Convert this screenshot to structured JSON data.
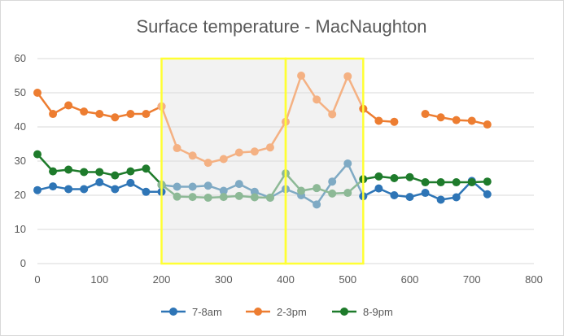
{
  "chart_data": {
    "type": "scatter",
    "title": "Surface temperature - MacNaughton",
    "xlabel": "",
    "ylabel": "",
    "xlim": [
      0,
      800
    ],
    "ylim": [
      0,
      60
    ],
    "x_ticks": [
      0,
      100,
      200,
      300,
      400,
      500,
      600,
      700,
      800
    ],
    "y_ticks": [
      0,
      10,
      20,
      30,
      40,
      50,
      60
    ],
    "grid": "horizontal",
    "legend": "bottom",
    "highlight_regions": [
      {
        "x_range": [
          200,
          400
        ],
        "y_range": [
          0,
          60
        ],
        "border_color": "#FFFF33",
        "fill_color": "#F2F2F2"
      },
      {
        "x_range": [
          400,
          525
        ],
        "y_range": [
          0,
          60
        ],
        "border_color": "#FFFF33",
        "fill_color": "#F2F2F2"
      }
    ],
    "series": [
      {
        "name": "7-8am",
        "color": "#2E75B6",
        "faded_color": "#7FAAC4",
        "segments": [
          [
            [
              0,
              21.5
            ],
            [
              25,
              22.6
            ],
            [
              50,
              21.8
            ],
            [
              75,
              21.8
            ],
            [
              100,
              23.8
            ],
            [
              125,
              21.8
            ],
            [
              150,
              23.6
            ],
            [
              175,
              21
            ],
            [
              200,
              21
            ]
          ],
          [
            [
              200,
              23
            ],
            [
              225,
              22.5
            ],
            [
              250,
              22.5
            ],
            [
              275,
              22.8
            ],
            [
              300,
              21.3
            ],
            [
              325,
              23.3
            ],
            [
              350,
              21
            ],
            [
              375,
              19.3
            ],
            [
              400,
              21.8
            ],
            [
              425,
              20
            ],
            [
              450,
              17.3
            ],
            [
              475,
              24
            ],
            [
              500,
              29.3
            ],
            [
              525,
              19.7
            ]
          ],
          [
            [
              525,
              19.7
            ],
            [
              550,
              22
            ],
            [
              575,
              20
            ],
            [
              600,
              19.5
            ],
            [
              625,
              20.7
            ],
            [
              650,
              18.7
            ],
            [
              675,
              19.4
            ],
            [
              700,
              24.2
            ],
            [
              725,
              20.3
            ]
          ]
        ]
      },
      {
        "name": "2-3pm",
        "color": "#ED7D31",
        "faded_color": "#F4B183",
        "segments": [
          [
            [
              0,
              50
            ],
            [
              25,
              43.8
            ],
            [
              50,
              46.3
            ],
            [
              75,
              44.5
            ],
            [
              100,
              43.8
            ],
            [
              125,
              42.8
            ],
            [
              150,
              43.8
            ],
            [
              175,
              43.8
            ],
            [
              200,
              46
            ]
          ],
          [
            [
              200,
              46
            ],
            [
              225,
              33.8
            ],
            [
              250,
              31.6
            ],
            [
              275,
              29.5
            ],
            [
              300,
              30.6
            ],
            [
              325,
              32.5
            ],
            [
              350,
              32.8
            ],
            [
              375,
              34
            ],
            [
              400,
              41.5
            ],
            [
              425,
              55
            ],
            [
              450,
              48
            ],
            [
              475,
              43.7
            ],
            [
              500,
              54.8
            ],
            [
              525,
              45.3
            ]
          ],
          [
            [
              525,
              45.3
            ],
            [
              550,
              41.8
            ],
            [
              575,
              41.5
            ]
          ],
          [
            [
              625,
              43.8
            ],
            [
              650,
              42.8
            ],
            [
              675,
              42
            ],
            [
              700,
              41.8
            ],
            [
              725,
              40.7
            ]
          ]
        ]
      },
      {
        "name": "8-9pm",
        "color": "#1E7B2B",
        "faded_color": "#8DB996",
        "segments": [
          [
            [
              0,
              32
            ],
            [
              25,
              27
            ],
            [
              50,
              27.5
            ],
            [
              75,
              26.8
            ],
            [
              100,
              26.8
            ],
            [
              125,
              25.8
            ],
            [
              150,
              27
            ],
            [
              175,
              27.8
            ],
            [
              200,
              23.1
            ]
          ],
          [
            [
              200,
              23.1
            ],
            [
              225,
              19.6
            ],
            [
              250,
              19.5
            ],
            [
              275,
              19.3
            ],
            [
              300,
              19.5
            ],
            [
              325,
              19.8
            ],
            [
              350,
              19.4
            ],
            [
              375,
              19.3
            ],
            [
              400,
              26.4
            ],
            [
              425,
              21.3
            ],
            [
              450,
              22.1
            ],
            [
              475,
              20.5
            ],
            [
              500,
              20.7
            ],
            [
              525,
              24.7
            ]
          ],
          [
            [
              525,
              24.7
            ],
            [
              550,
              25.5
            ],
            [
              575,
              25
            ],
            [
              600,
              25.3
            ],
            [
              625,
              23.8
            ],
            [
              650,
              23.8
            ],
            [
              675,
              23.8
            ],
            [
              700,
              23.8
            ],
            [
              725,
              24
            ]
          ]
        ]
      }
    ]
  }
}
